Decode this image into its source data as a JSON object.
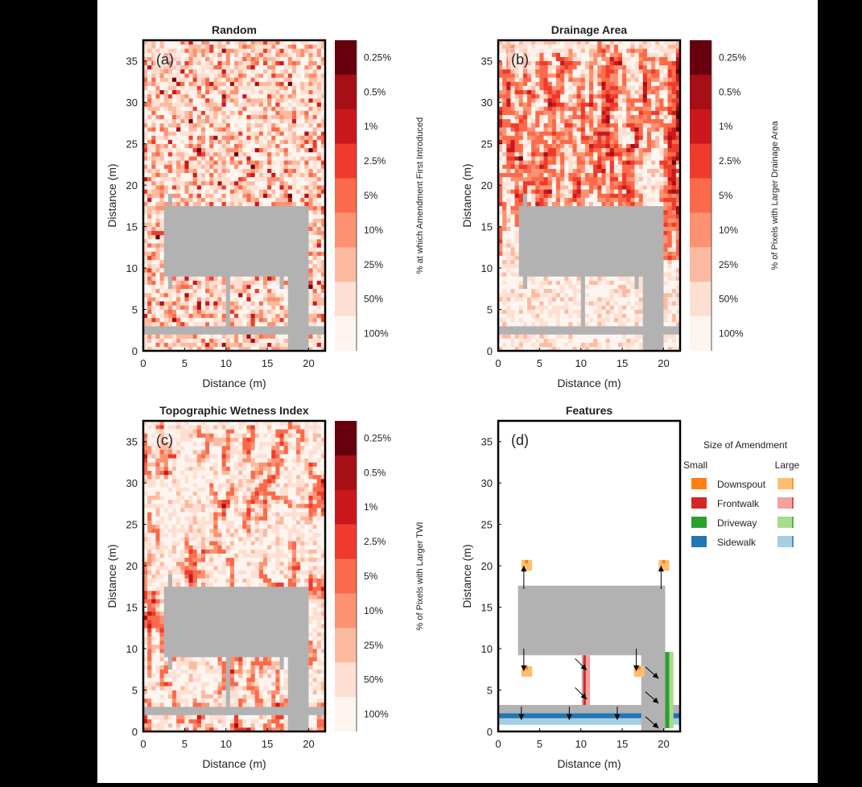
{
  "chart_data": [
    {
      "type": "heatmap",
      "panel_label": "(a)",
      "title": "Random",
      "xlabel": "Distance (m)",
      "ylabel": "Distance (m)",
      "xlim": [
        0,
        22
      ],
      "ylim": [
        0,
        37.5
      ],
      "xticks": [
        0,
        5,
        10,
        15,
        20
      ],
      "yticks": [
        0,
        5,
        10,
        15,
        20,
        25,
        30,
        35
      ],
      "pattern": "random",
      "colorbar": {
        "label": "% at which Amendment First Introduced",
        "levels": [
          "0.25%",
          "0.5%",
          "1%",
          "2.5%",
          "5%",
          "10%",
          "25%",
          "50%",
          "100%"
        ]
      }
    },
    {
      "type": "heatmap",
      "panel_label": "(b)",
      "title": "Drainage Area",
      "xlabel": "Distance (m)",
      "ylabel": "Distance (m)",
      "xlim": [
        0,
        22
      ],
      "ylim": [
        0,
        37.5
      ],
      "xticks": [
        0,
        5,
        10,
        15,
        20
      ],
      "yticks": [
        0,
        5,
        10,
        15,
        20,
        25,
        30,
        35
      ],
      "pattern": "drainage",
      "colorbar": {
        "label": "% of Pixels with Larger Drainage Area",
        "levels": [
          "0.25%",
          "0.5%",
          "1%",
          "2.5%",
          "5%",
          "10%",
          "25%",
          "50%",
          "100%"
        ]
      }
    },
    {
      "type": "heatmap",
      "panel_label": "(c)",
      "title": "Topographic Wetness Index",
      "xlabel": "Distance (m)",
      "ylabel": "Distance (m)",
      "xlim": [
        0,
        22
      ],
      "ylim": [
        0,
        37.5
      ],
      "xticks": [
        0,
        5,
        10,
        15,
        20
      ],
      "yticks": [
        0,
        5,
        10,
        15,
        20,
        25,
        30,
        35
      ],
      "pattern": "twi",
      "colorbar": {
        "label": "% of Pixels with Larger TWI",
        "levels": [
          "0.25%",
          "0.5%",
          "1%",
          "2.5%",
          "5%",
          "10%",
          "25%",
          "50%",
          "100%"
        ]
      }
    },
    {
      "type": "map",
      "panel_label": "(d)",
      "title": "Features",
      "xlabel": "Distance (m)",
      "ylabel": "Distance (m)",
      "xlim": [
        0,
        22
      ],
      "ylim": [
        0,
        37.5
      ],
      "xticks": [
        0,
        5,
        10,
        15,
        20
      ],
      "yticks": [
        0,
        5,
        10,
        15,
        20,
        25,
        30,
        35
      ],
      "legend": {
        "title": "Size of Amendment",
        "small_label": "Small",
        "large_label": "Large",
        "items": [
          {
            "name": "Downspout",
            "small": "#ff7f0e",
            "large": "#fdbf6f"
          },
          {
            "name": "Frontwalk",
            "small": "#d62728",
            "large": "#f4a09c"
          },
          {
            "name": "Driveway",
            "small": "#2ca02c",
            "large": "#a6dc8e"
          },
          {
            "name": "Sidewalk",
            "small": "#1f77b4",
            "large": "#a6cee3"
          }
        ]
      }
    }
  ],
  "colors": {
    "impervious": "#b2b2b2",
    "colorbar_scale": [
      "#67000d",
      "#a50f15",
      "#cb181d",
      "#ef3b2c",
      "#fb6a4a",
      "#fc9272",
      "#fcbba1",
      "#fee0d2",
      "#fff5f0"
    ]
  }
}
